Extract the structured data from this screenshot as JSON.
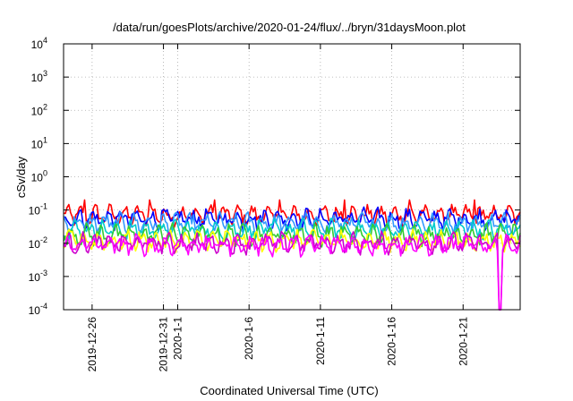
{
  "chart_data": {
    "type": "line",
    "title": "/data/run/goesPlots/archive/2020-01-24/flux/../bryn/31daysMoon.plot",
    "xlabel": "Coordinated Universal Time (UTC)",
    "ylabel": "cSv/day",
    "yscale": "log",
    "ylim": [
      0.0001,
      10000
    ],
    "xlim": [
      "2019-12-24",
      "2020-01-25"
    ],
    "grid": true,
    "legend": "none",
    "y_ticks": [
      {
        "base": "10",
        "exp": "-4",
        "value": 0.0001
      },
      {
        "base": "10",
        "exp": "-3",
        "value": 0.001
      },
      {
        "base": "10",
        "exp": "-2",
        "value": 0.01
      },
      {
        "base": "10",
        "exp": "-1",
        "value": 0.1
      },
      {
        "base": "10",
        "exp": "0",
        "value": 1
      },
      {
        "base": "10",
        "exp": "1",
        "value": 10
      },
      {
        "base": "10",
        "exp": "2",
        "value": 100
      },
      {
        "base": "10",
        "exp": "3",
        "value": 1000
      },
      {
        "base": "10",
        "exp": "4",
        "value": 10000
      }
    ],
    "x_ticks": [
      {
        "label": "2019-12-26",
        "value": "2019-12-26"
      },
      {
        "label": "2019-12-31",
        "value": "2019-12-31"
      },
      {
        "label": "2020-1-1",
        "value": "2020-01-01"
      },
      {
        "label": "2020-1-6",
        "value": "2020-01-06"
      },
      {
        "label": "2020-1-11",
        "value": "2020-01-11"
      },
      {
        "label": "2020-1-16",
        "value": "2020-01-16"
      },
      {
        "label": "2020-1-21",
        "value": "2020-01-21"
      }
    ],
    "series": [
      {
        "color": "#ff0000",
        "x_range": [
          "2019-12-24",
          "2020-01-25"
        ],
        "level": 0.07,
        "spike_max": 0.2,
        "samples": [
          [
            "2019-12-25",
            0.08
          ],
          [
            "2019-12-28",
            0.07
          ],
          [
            "2020-01-01",
            0.07
          ],
          [
            "2020-01-05",
            0.07
          ],
          [
            "2020-01-10",
            0.07
          ],
          [
            "2020-01-15",
            0.2
          ],
          [
            "2020-01-20",
            0.08
          ],
          [
            "2020-01-24",
            0.07
          ]
        ]
      },
      {
        "color": "#0000ff",
        "x_range": [
          "2019-12-24",
          "2020-01-25"
        ],
        "level": 0.055,
        "samples": [
          [
            "2019-12-25",
            0.06
          ],
          [
            "2020-01-01",
            0.055
          ],
          [
            "2020-01-10",
            0.05
          ],
          [
            "2020-01-20",
            0.06
          ]
        ]
      },
      {
        "color": "#3399ff",
        "x_range": [
          "2019-12-24",
          "2020-01-25"
        ],
        "level": 0.04,
        "samples": [
          [
            "2019-12-25",
            0.045
          ],
          [
            "2020-01-01",
            0.04
          ],
          [
            "2020-01-10",
            0.04
          ],
          [
            "2020-01-20",
            0.04
          ]
        ]
      },
      {
        "color": "#00cccc",
        "x_range": [
          "2019-12-24",
          "2020-01-25"
        ],
        "level": 0.025,
        "samples": [
          [
            "2019-12-25",
            0.025
          ],
          [
            "2020-01-01",
            0.025
          ],
          [
            "2020-01-10",
            0.025
          ],
          [
            "2020-01-20",
            0.025
          ]
        ]
      },
      {
        "color": "#33cc33",
        "x_range": [
          "2019-12-24",
          "2020-01-25"
        ],
        "level": 0.018,
        "samples": [
          [
            "2019-12-25",
            0.018
          ],
          [
            "2020-01-01",
            0.018
          ],
          [
            "2020-01-10",
            0.018
          ],
          [
            "2020-01-20",
            0.018
          ]
        ]
      },
      {
        "color": "#ffff00",
        "x_range": [
          "2019-12-24",
          "2020-01-25"
        ],
        "level": 0.012,
        "samples": [
          [
            "2019-12-25",
            0.012
          ],
          [
            "2020-01-01",
            0.012
          ],
          [
            "2020-01-10",
            0.012
          ],
          [
            "2020-01-20",
            0.012
          ]
        ]
      },
      {
        "color": "#cc00cc",
        "x_range": [
          "2019-12-24",
          "2020-01-25"
        ],
        "level": 0.01,
        "samples": [
          [
            "2019-12-25",
            0.01
          ],
          [
            "2020-01-01",
            0.01
          ],
          [
            "2020-01-10",
            0.01
          ],
          [
            "2020-01-20",
            0.01
          ]
        ],
        "dropout": [
          "2020-01-23T10:00",
          "2020-01-23T16:00",
          0.0001
        ]
      },
      {
        "color": "#ff00ff",
        "x_range": [
          "2019-12-24",
          "2020-01-25"
        ],
        "level": 0.009,
        "samples": [
          [
            "2019-12-25",
            0.009
          ],
          [
            "2020-01-01",
            0.009
          ],
          [
            "2020-01-10",
            0.009
          ],
          [
            "2020-01-20",
            0.009
          ]
        ],
        "dropout": [
          "2020-01-23T10:00",
          "2020-01-23T16:00",
          0.0001
        ]
      }
    ]
  }
}
